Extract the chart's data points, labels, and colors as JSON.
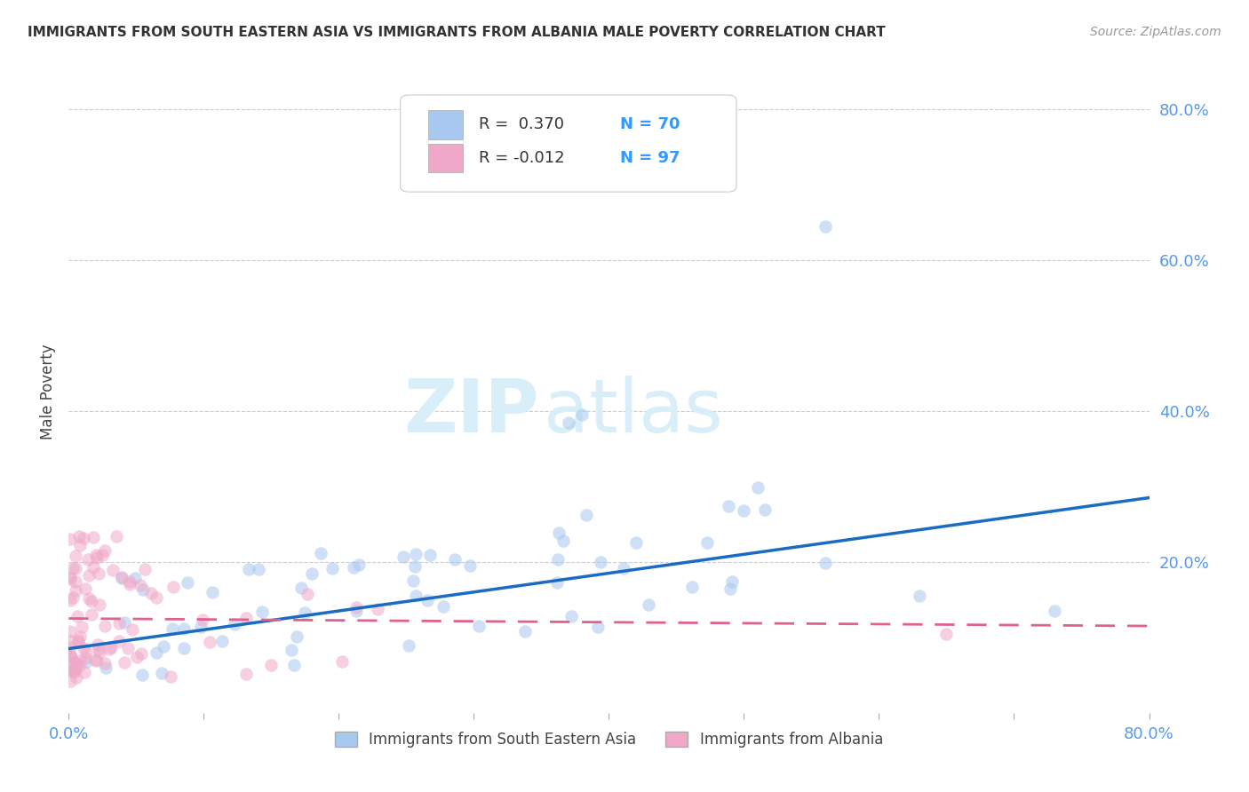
{
  "title": "IMMIGRANTS FROM SOUTH EASTERN ASIA VS IMMIGRANTS FROM ALBANIA MALE POVERTY CORRELATION CHART",
  "source": "Source: ZipAtlas.com",
  "ylabel": "Male Poverty",
  "xlim": [
    0.0,
    0.8
  ],
  "ylim": [
    0.0,
    0.85
  ],
  "color_blue": "#a8c8f0",
  "color_pink": "#f0a8c8",
  "line_blue": "#1a6bc4",
  "line_pink": "#e06090",
  "watermark_zip": "ZIP",
  "watermark_atlas": "atlas",
  "watermark_color": "#d8eef8",
  "grid_color": "#cccccc",
  "background_color": "#ffffff",
  "blue_trend_x": [
    0.0,
    0.8
  ],
  "blue_trend_y": [
    0.085,
    0.285
  ],
  "pink_trend_x": [
    0.0,
    0.8
  ],
  "pink_trend_y": [
    0.125,
    0.115
  ],
  "scatter_size": 110,
  "scatter_alpha": 0.55,
  "title_fontsize": 11,
  "source_fontsize": 10,
  "tick_fontsize": 13,
  "legend_fontsize": 13,
  "ylabel_fontsize": 12
}
